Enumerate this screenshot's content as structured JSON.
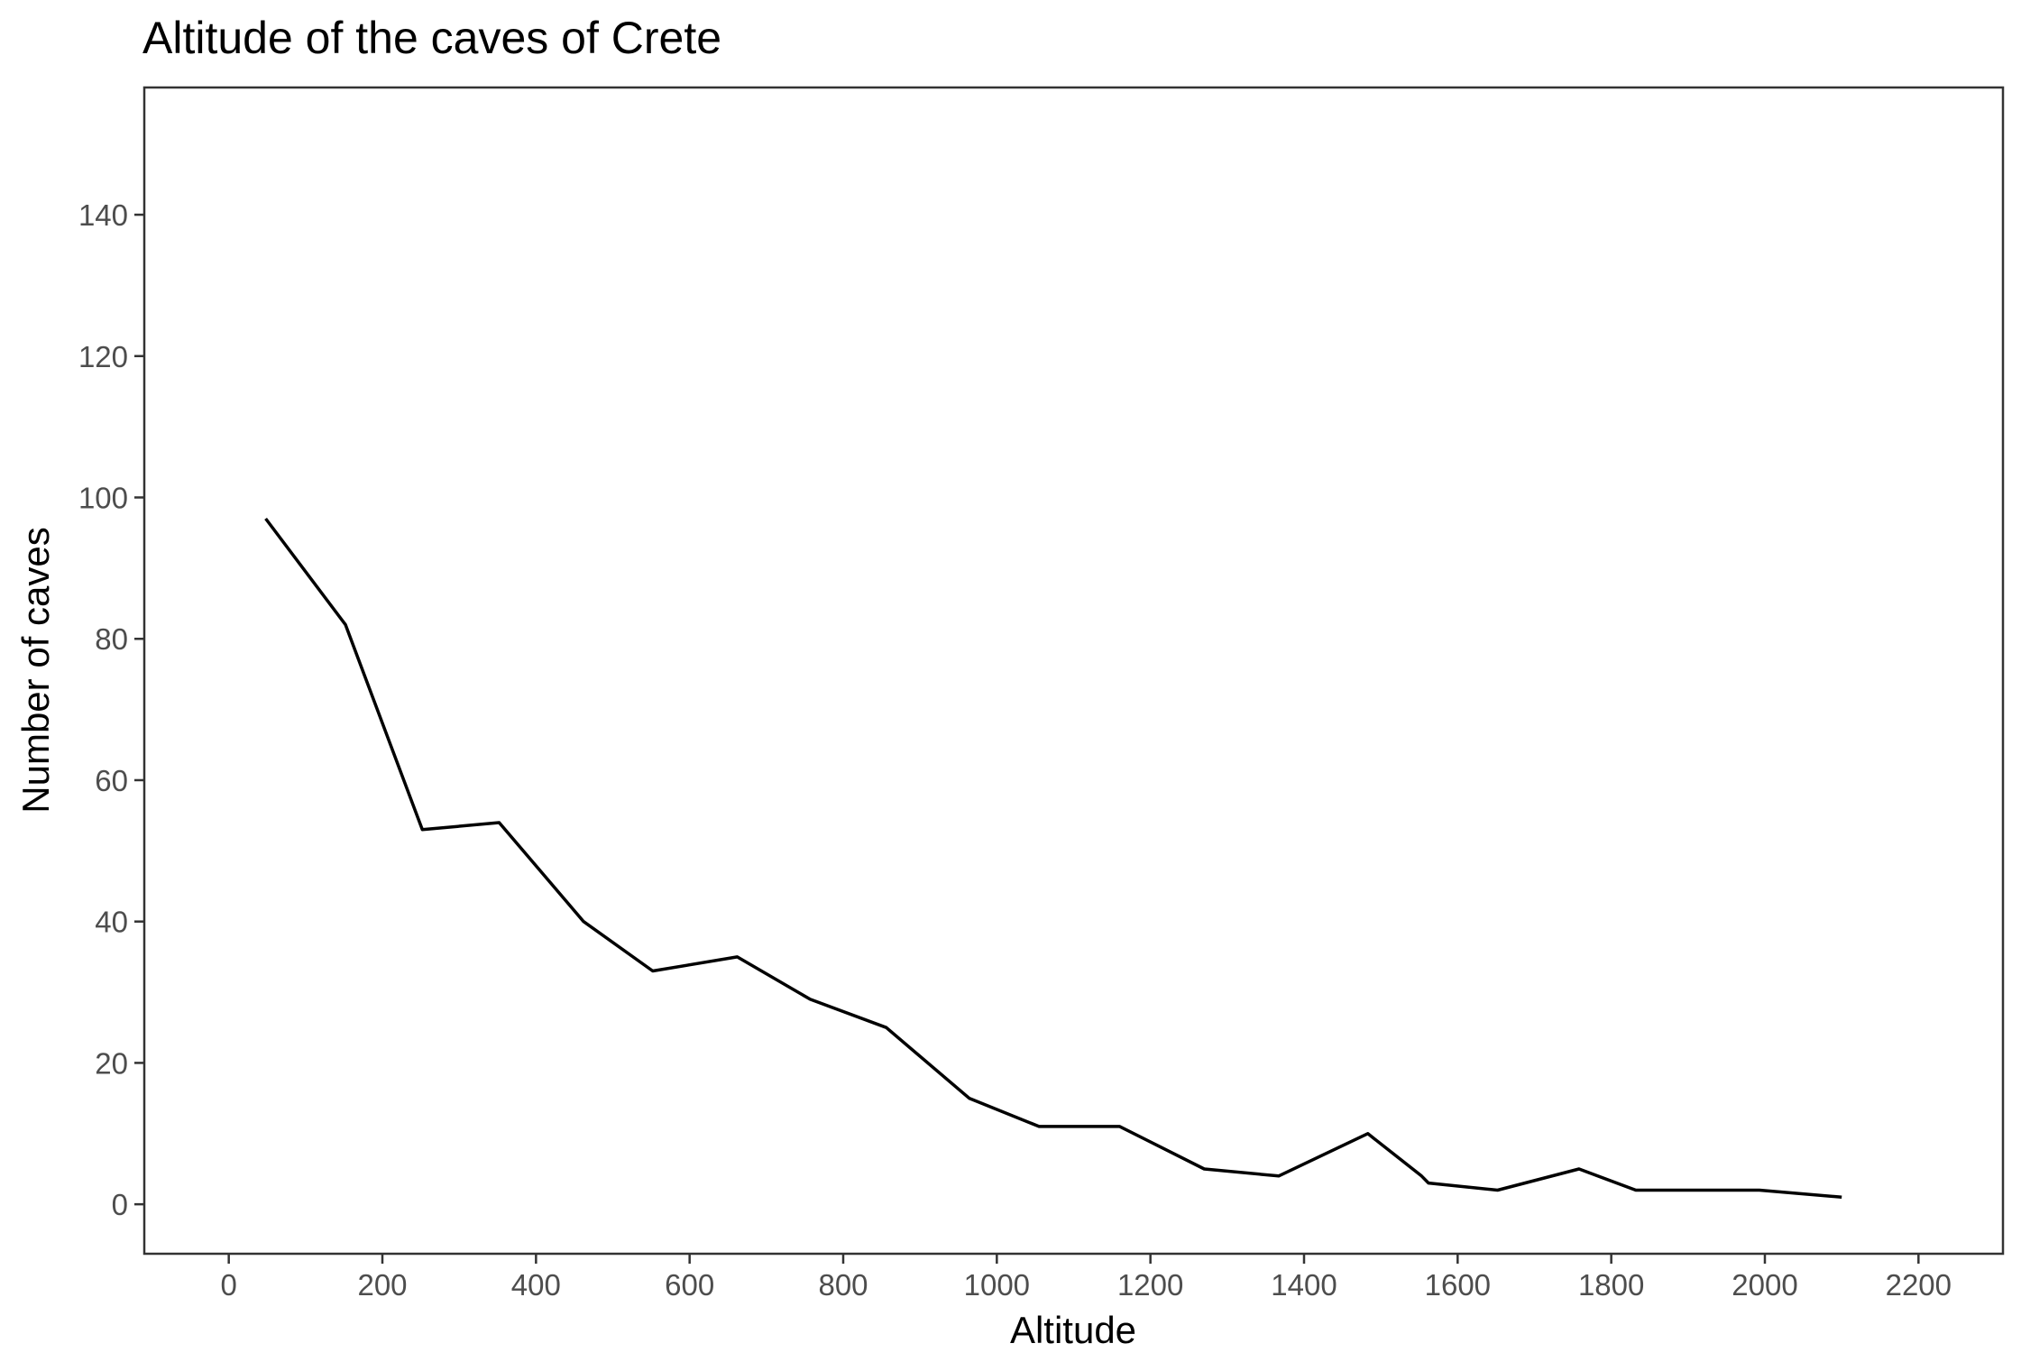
{
  "chart_data": {
    "type": "line",
    "title": "Altitude of the caves of Crete",
    "xlabel": "Altitude",
    "ylabel": "Number of caves",
    "xlim": [
      -110,
      2310
    ],
    "ylim": [
      -7,
      158
    ],
    "x_ticks": [
      "0",
      "200",
      "400",
      "600",
      "800",
      "1000",
      "1200",
      "1400",
      "1600",
      "1800",
      "2000",
      "2200"
    ],
    "x_tick_values": [
      0,
      200,
      400,
      600,
      800,
      1000,
      1200,
      1400,
      1600,
      1800,
      2000,
      2200
    ],
    "y_ticks": [
      "0",
      "20",
      "40",
      "60",
      "80",
      "100",
      "120",
      "140"
    ],
    "y_tick_values": [
      0,
      20,
      40,
      60,
      80,
      100,
      120,
      140
    ],
    "grid": false,
    "legend": "none",
    "line_color": "#000000",
    "series": [
      {
        "x": [
          48,
          152,
          252,
          352,
          462,
          552,
          662,
          757,
          856,
          964,
          1055,
          1160,
          1270,
          1367,
          1483,
          1553,
          1562,
          1652,
          1758,
          1832,
          1993,
          2100
        ],
        "values": [
          97,
          82,
          53,
          54,
          40,
          33,
          35,
          29,
          25,
          15,
          11,
          11,
          5,
          4,
          10,
          4,
          3,
          2,
          5,
          2,
          2,
          1
        ]
      }
    ]
  }
}
